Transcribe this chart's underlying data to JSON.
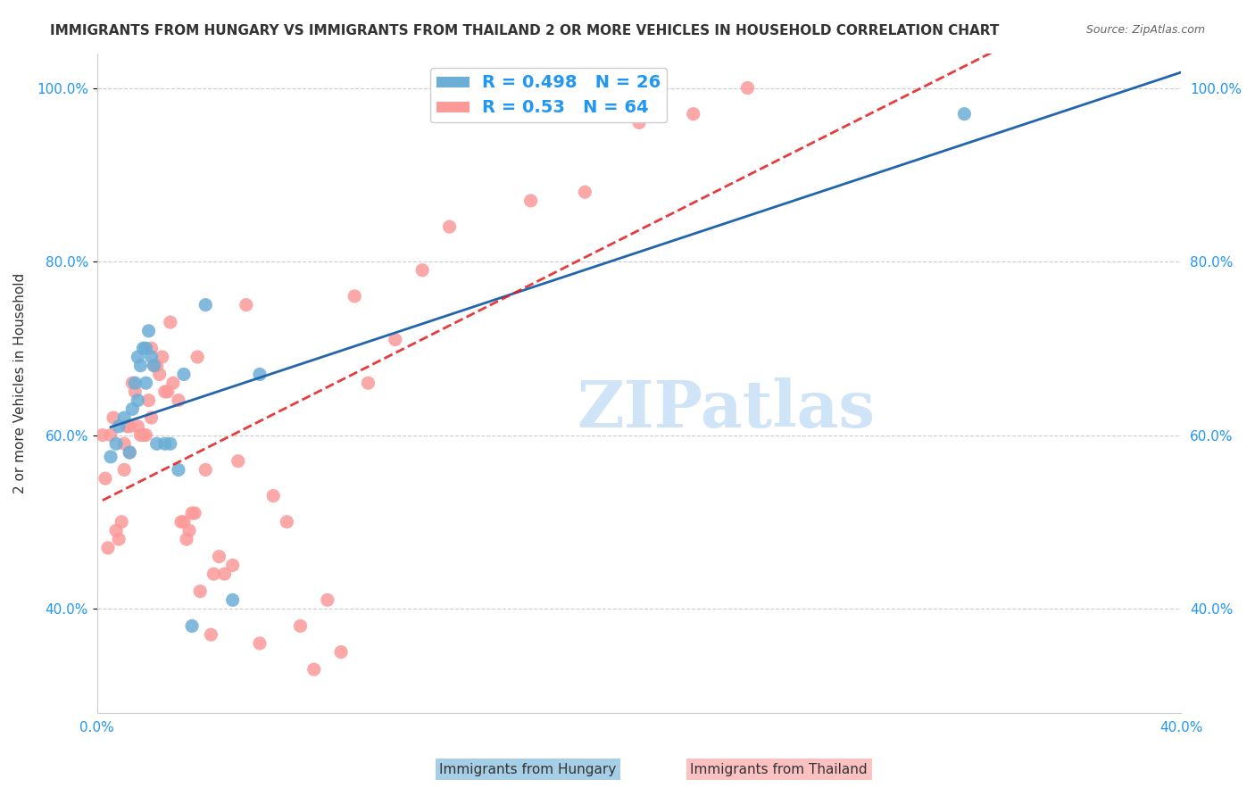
{
  "title": "IMMIGRANTS FROM HUNGARY VS IMMIGRANTS FROM THAILAND 2 OR MORE VEHICLES IN HOUSEHOLD CORRELATION CHART",
  "source": "Source: ZipAtlas.com",
  "ylabel": "2 or more Vehicles in Household",
  "xlabel": "",
  "xlim": [
    0.0,
    0.4
  ],
  "ylim": [
    0.28,
    1.04
  ],
  "xticks": [
    0.0,
    0.05,
    0.1,
    0.15,
    0.2,
    0.25,
    0.3,
    0.35,
    0.4
  ],
  "yticks": [
    0.4,
    0.6,
    0.8,
    1.0
  ],
  "ytick_labels": [
    "40.0%",
    "60.0%",
    "80.0%",
    "100.0%"
  ],
  "xtick_labels": [
    "0.0%",
    "",
    "",
    "",
    "",
    "",
    "",
    "",
    "40.0%"
  ],
  "hungary_R": 0.498,
  "hungary_N": 26,
  "thailand_R": 0.53,
  "thailand_N": 64,
  "hungary_color": "#6baed6",
  "thailand_color": "#fb9a99",
  "hungary_line_color": "#2166ac",
  "thailand_line_color": "#e31a1c",
  "background_color": "#ffffff",
  "watermark": "ZIPatlas",
  "watermark_color": "#d0e4f7",
  "hungary_x": [
    0.005,
    0.007,
    0.008,
    0.01,
    0.012,
    0.013,
    0.014,
    0.015,
    0.015,
    0.016,
    0.017,
    0.018,
    0.018,
    0.019,
    0.02,
    0.021,
    0.022,
    0.025,
    0.027,
    0.03,
    0.032,
    0.035,
    0.04,
    0.05,
    0.06,
    0.32
  ],
  "hungary_y": [
    0.575,
    0.59,
    0.61,
    0.62,
    0.58,
    0.63,
    0.66,
    0.64,
    0.69,
    0.68,
    0.7,
    0.66,
    0.7,
    0.72,
    0.69,
    0.68,
    0.59,
    0.59,
    0.59,
    0.56,
    0.67,
    0.38,
    0.75,
    0.41,
    0.67,
    0.97
  ],
  "thailand_x": [
    0.002,
    0.003,
    0.004,
    0.005,
    0.006,
    0.007,
    0.008,
    0.009,
    0.01,
    0.01,
    0.011,
    0.012,
    0.012,
    0.013,
    0.014,
    0.015,
    0.016,
    0.017,
    0.018,
    0.019,
    0.02,
    0.02,
    0.021,
    0.022,
    0.023,
    0.024,
    0.025,
    0.026,
    0.027,
    0.028,
    0.03,
    0.031,
    0.032,
    0.033,
    0.034,
    0.035,
    0.036,
    0.037,
    0.038,
    0.04,
    0.042,
    0.043,
    0.045,
    0.047,
    0.05,
    0.052,
    0.055,
    0.06,
    0.065,
    0.07,
    0.075,
    0.08,
    0.085,
    0.09,
    0.095,
    0.1,
    0.11,
    0.12,
    0.13,
    0.16,
    0.18,
    0.2,
    0.22,
    0.24
  ],
  "thailand_y": [
    0.6,
    0.55,
    0.47,
    0.6,
    0.62,
    0.49,
    0.48,
    0.5,
    0.59,
    0.56,
    0.61,
    0.58,
    0.61,
    0.66,
    0.65,
    0.61,
    0.6,
    0.6,
    0.6,
    0.64,
    0.62,
    0.7,
    0.68,
    0.68,
    0.67,
    0.69,
    0.65,
    0.65,
    0.73,
    0.66,
    0.64,
    0.5,
    0.5,
    0.48,
    0.49,
    0.51,
    0.51,
    0.69,
    0.42,
    0.56,
    0.37,
    0.44,
    0.46,
    0.44,
    0.45,
    0.57,
    0.75,
    0.36,
    0.53,
    0.5,
    0.38,
    0.33,
    0.41,
    0.35,
    0.76,
    0.66,
    0.71,
    0.79,
    0.84,
    0.87,
    0.88,
    0.96,
    0.97,
    1.0
  ]
}
